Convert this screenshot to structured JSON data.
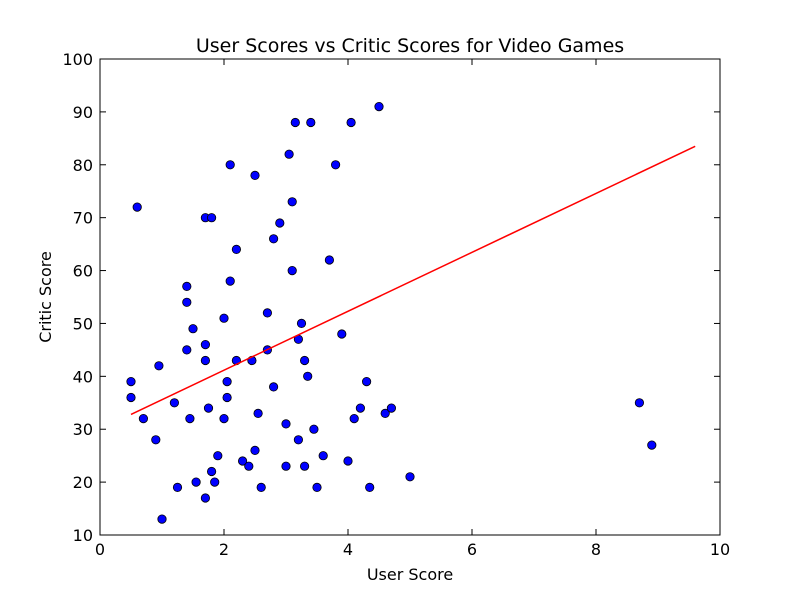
{
  "chart_data": {
    "type": "scatter",
    "title": "User Scores vs Critic Scores for Video Games",
    "xlabel": "User Score",
    "ylabel": "Critic Score",
    "xlim": [
      0,
      10
    ],
    "ylim": [
      10,
      100
    ],
    "x_ticks": [
      0,
      2,
      4,
      6,
      8,
      10
    ],
    "y_ticks": [
      10,
      20,
      30,
      40,
      50,
      60,
      70,
      80,
      90,
      100
    ],
    "grid": false,
    "legend": "none",
    "point_color": "#0000ff",
    "point_edge_color": "#000000",
    "trend_color": "#ff0000",
    "trend_line": {
      "x": [
        0.5,
        9.6
      ],
      "y": [
        32.8,
        83.5
      ]
    },
    "series": [
      {
        "x": [
          0.5,
          0.5,
          0.6,
          0.7,
          0.9,
          0.95,
          1.0,
          1.2,
          1.25,
          1.4,
          1.4,
          1.4,
          1.45,
          1.5,
          1.55,
          1.7,
          1.7,
          1.7,
          1.7,
          1.75,
          1.8,
          1.8,
          1.85,
          1.9,
          2.0,
          2.0,
          2.05,
          2.05,
          2.1,
          2.1,
          2.2,
          2.2,
          2.3,
          2.4,
          2.45,
          2.5,
          2.5,
          2.55,
          2.6,
          2.7,
          2.7,
          2.8,
          2.8,
          2.9,
          3.0,
          3.0,
          3.05,
          3.1,
          3.1,
          3.15,
          3.2,
          3.2,
          3.25,
          3.3,
          3.3,
          3.35,
          3.4,
          3.45,
          3.5,
          3.6,
          3.7,
          3.8,
          3.9,
          4.0,
          4.05,
          4.1,
          4.2,
          4.3,
          4.35,
          4.5,
          4.6,
          4.7,
          5.0,
          8.7,
          8.9
        ],
        "y": [
          39,
          36,
          72,
          32,
          28,
          42,
          13,
          35,
          19,
          57,
          54,
          45,
          32,
          49,
          20,
          46,
          43,
          17,
          70,
          34,
          22,
          70,
          20,
          25,
          51,
          32,
          39,
          36,
          80,
          58,
          43,
          64,
          24,
          23,
          43,
          78,
          26,
          33,
          19,
          52,
          45,
          38,
          66,
          69,
          31,
          23,
          82,
          73,
          60,
          88,
          28,
          47,
          50,
          43,
          23,
          40,
          88,
          30,
          19,
          25,
          62,
          80,
          48,
          24,
          88,
          32,
          34,
          39,
          19,
          91,
          33,
          34,
          21,
          35,
          27
        ]
      }
    ]
  }
}
